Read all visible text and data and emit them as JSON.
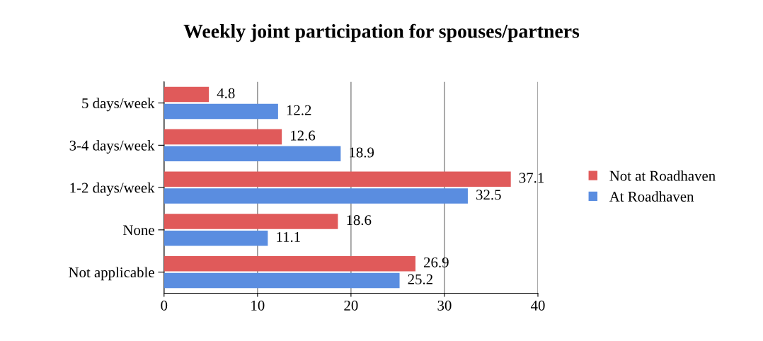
{
  "chart_data": {
    "type": "bar",
    "orientation": "horizontal",
    "title": "Weekly joint participation for spouses/partners",
    "categories": [
      "5 days/week",
      "3-4 days/week",
      "1-2 days/week",
      "None",
      "Not applicable"
    ],
    "series": [
      {
        "name": "Not at Roadhaven",
        "color": "#e05a5a",
        "values": [
          4.8,
          12.6,
          37.1,
          18.6,
          26.9
        ]
      },
      {
        "name": "At Roadhaven",
        "color": "#5a8de0",
        "values": [
          12.2,
          18.9,
          32.5,
          11.1,
          25.2
        ]
      }
    ],
    "xlim": [
      0,
      40
    ],
    "xticks": [
      0,
      10,
      20,
      30,
      40
    ],
    "grid": "x",
    "legend": "right",
    "data_labels": true
  }
}
